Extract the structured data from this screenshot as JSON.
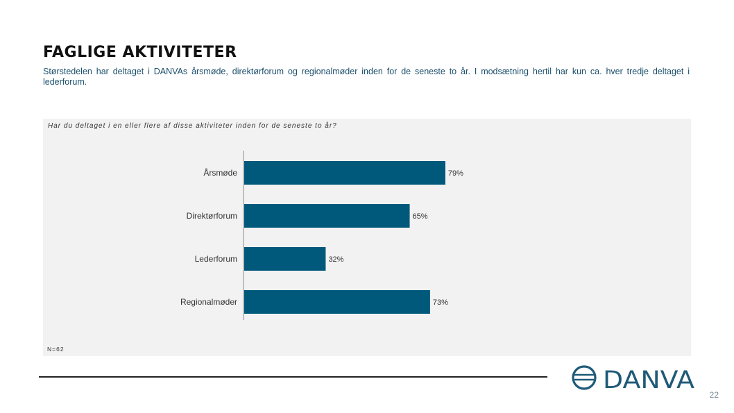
{
  "header": {
    "title": "FAGLIGE AKTIVITETER",
    "subtitle": "Størstedelen har deltaget i DANVAs årsmøde, direktørforum og regionalmøder inden for de seneste to år. I modsætning hertil har kun ca. hver tredje deltaget i lederforum."
  },
  "chart_data": {
    "type": "bar",
    "orientation": "horizontal",
    "question": "Har du deltaget i en eller flere af disse aktiviteter inden for de seneste to år?",
    "categories": [
      "Årsmøde",
      "Direktørforum",
      "Lederforum",
      "Regionalmøder"
    ],
    "values": [
      79,
      65,
      32,
      73
    ],
    "value_labels": [
      "79%",
      "65%",
      "32%",
      "73%"
    ],
    "unit": "%",
    "xlim": [
      0,
      100
    ],
    "bar_color": "#00587a",
    "grid": false,
    "base_note": "N=62"
  },
  "footer": {
    "logo_text": "DANVA",
    "page_number": "22",
    "logo_color": "#1e5a78"
  }
}
